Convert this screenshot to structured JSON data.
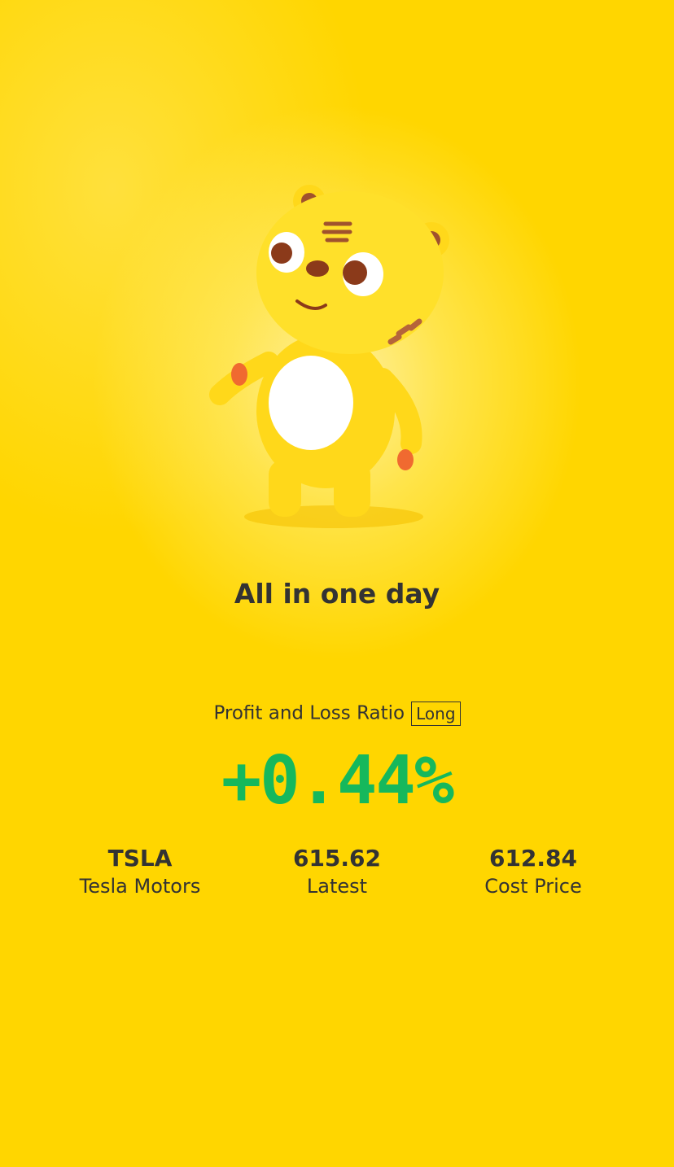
{
  "headline": "All in one day",
  "pl": {
    "label": "Profit and Loss Ratio",
    "badge": "Long",
    "value": "+0.44%",
    "value_color": "#16b85c"
  },
  "stats": [
    {
      "value": "TSLA",
      "label": "Tesla Motors"
    },
    {
      "value": "615.62",
      "label": "Latest"
    },
    {
      "value": "612.84",
      "label": "Cost Price"
    }
  ],
  "icons": {
    "mascot": "tiger-mascot-illustration"
  },
  "colors": {
    "background": "#ffd600",
    "text": "#333333"
  }
}
